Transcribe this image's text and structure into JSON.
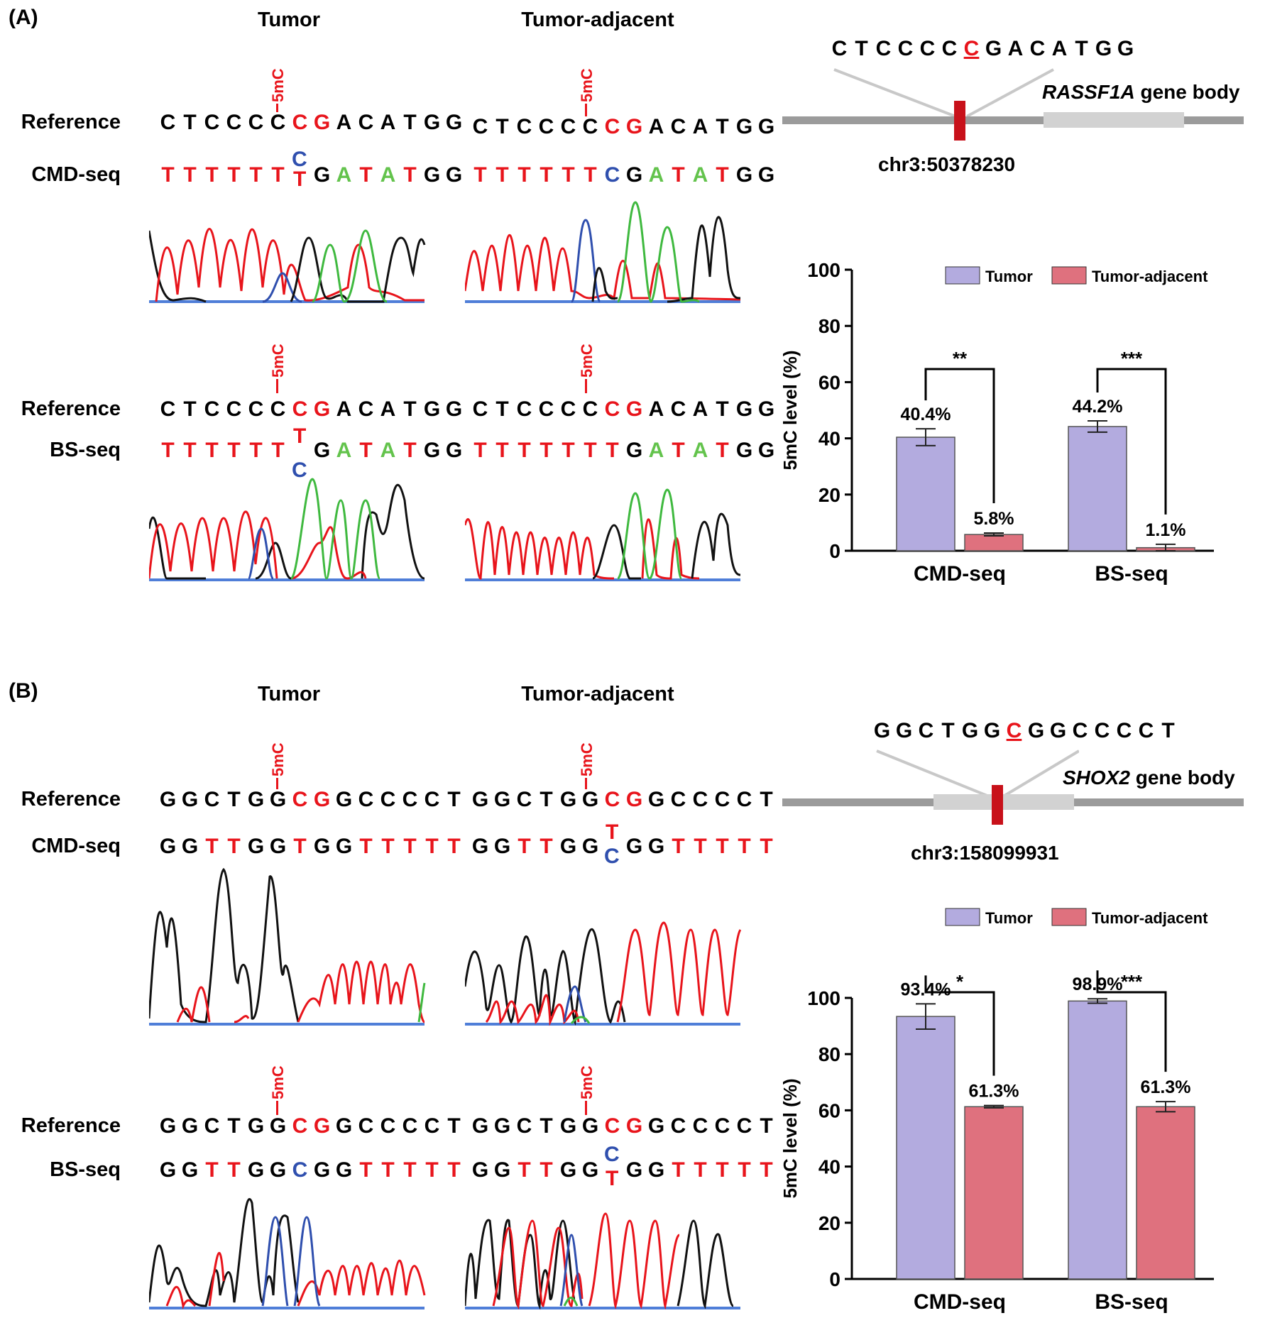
{
  "panels": [
    {
      "label": "(A)",
      "col_titles": [
        "Tumor",
        "Tumor-adjacent"
      ],
      "mark": "5mC",
      "rows": {
        "reference": "Reference",
        "cmd": "CMD-seq",
        "bs": "BS-seq"
      },
      "ref_seq": "CTCCCCCGACATGG",
      "tumor_cmd": "TTTTTT·GATATGG",
      "tumor_cmd_alt": [
        "C",
        "T"
      ],
      "adj_cmd": "TTTTTTCGATATGG",
      "tumor_bs": "TTTTTT·GATATGG",
      "tumor_bs_alt": [
        "T",
        "C"
      ],
      "adj_bs": "TTTTTTTGATATGG",
      "locus_seq": "CTCCCCCGACATGG",
      "gene_name": "RASSF1A",
      "gene_suffix": "gene body",
      "chrom": "chr3:50378230"
    },
    {
      "label": "(B)",
      "col_titles": [
        "Tumor",
        "Tumor-adjacent"
      ],
      "mark": "5mC",
      "rows": {
        "reference": "Reference",
        "cmd": "CMD-seq",
        "bs": "BS-seq"
      },
      "ref_seq": "GGCTGGCGGCCCCT",
      "tumor_cmd": "GGTTGGTGGTTTTT",
      "adj_cmd": "GGTTGG·GGTTTTT",
      "adj_cmd_alt": [
        "T",
        "C"
      ],
      "tumor_bs": "GGTTGGCGGTTTTT",
      "adj_bs": "GGTTGG·GGTTTTT",
      "adj_bs_alt": [
        "C",
        "T"
      ],
      "locus_seq": "GGCTGGCGGCCCCT",
      "gene_name": "SHOX2",
      "gene_suffix": "gene body",
      "chrom": "chr3:158099931"
    }
  ],
  "chart_data": [
    {
      "type": "bar",
      "categories": [
        "CMD-seq",
        "BS-seq"
      ],
      "series": [
        {
          "name": "Tumor",
          "values": [
            40.4,
            44.2
          ],
          "errors": [
            3.0,
            2.0
          ],
          "color": "#b3abdf"
        },
        {
          "name": "Tumor-adjacent",
          "values": [
            5.8,
            1.1
          ],
          "errors": [
            0.5,
            1.2
          ],
          "color": "#df717e"
        }
      ],
      "value_labels": [
        [
          "40.4%",
          "44.2%"
        ],
        [
          "5.8%",
          "1.1%"
        ]
      ],
      "significance": [
        "**",
        "***"
      ],
      "ylabel": "5mC level (%)",
      "ylim": [
        0,
        100
      ],
      "yticks": [
        0,
        20,
        40,
        60,
        80,
        100
      ],
      "legend": "top"
    },
    {
      "type": "bar",
      "categories": [
        "CMD-seq",
        "BS-seq"
      ],
      "series": [
        {
          "name": "Tumor",
          "values": [
            93.4,
            98.9
          ],
          "errors": [
            4.5,
            0.8
          ],
          "color": "#b3abdf"
        },
        {
          "name": "Tumor-adjacent",
          "values": [
            61.3,
            61.3
          ],
          "errors": [
            0.4,
            1.8
          ],
          "color": "#df717e"
        }
      ],
      "value_labels": [
        [
          "93.4%",
          "98.9%"
        ],
        [
          "61.3%",
          "61.3%"
        ]
      ],
      "significance": [
        "*",
        "***"
      ],
      "ylabel": "5mC level (%)",
      "ylim": [
        0,
        100
      ],
      "yticks": [
        0,
        20,
        40,
        60,
        80,
        100
      ],
      "legend": "top"
    }
  ]
}
